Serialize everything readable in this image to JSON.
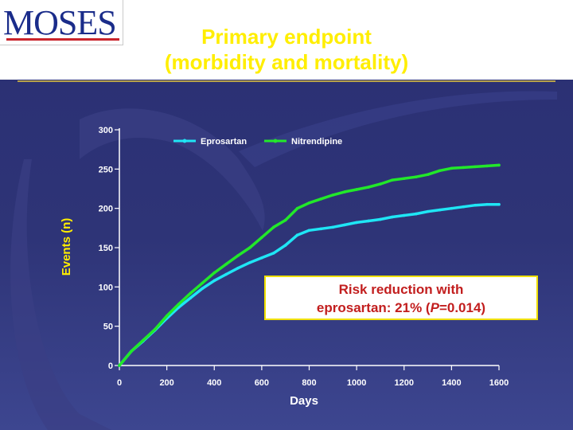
{
  "logo": {
    "text": "MOSES"
  },
  "slide": {
    "title_line1": "Primary endpoint",
    "title_line2": "(morbidity and mortality)"
  },
  "callout": {
    "line1": "Risk reduction with",
    "line2_prefix": "eprosartan: 21% (",
    "line2_italic": "P",
    "line2_suffix": "=0.014)"
  },
  "colors": {
    "title": "#ffee00",
    "eprosartan": "#1fe6f5",
    "nitrendipine": "#22e82a",
    "callout_text": "#c21e1e",
    "callout_border": "#f0e000",
    "background": "#2e3477"
  },
  "chart_data": {
    "type": "line",
    "title": "",
    "xlabel": "Days",
    "ylabel": "Events (n)",
    "xlim": [
      0,
      1600
    ],
    "ylim": [
      0,
      300
    ],
    "xticks": [
      0,
      200,
      400,
      600,
      800,
      1000,
      1200,
      1400,
      1600
    ],
    "yticks": [
      0,
      50,
      100,
      150,
      200,
      250,
      300
    ],
    "grid": false,
    "legend": "top-center",
    "series": [
      {
        "name": "Eprosartan",
        "color": "#1fe6f5",
        "x": [
          0,
          50,
          100,
          150,
          200,
          250,
          300,
          350,
          400,
          450,
          500,
          550,
          600,
          650,
          700,
          750,
          800,
          850,
          900,
          950,
          1000,
          1050,
          1100,
          1150,
          1200,
          1250,
          1300,
          1350,
          1400,
          1450,
          1500,
          1550,
          1600
        ],
        "y": [
          0,
          18,
          31,
          45,
          60,
          74,
          86,
          98,
          108,
          116,
          124,
          131,
          137,
          143,
          153,
          166,
          172,
          174,
          176,
          179,
          182,
          184,
          186,
          189,
          191,
          193,
          196,
          198,
          200,
          202,
          204,
          205,
          205
        ]
      },
      {
        "name": "Nitrendipine",
        "color": "#22e82a",
        "x": [
          0,
          50,
          100,
          150,
          200,
          250,
          300,
          350,
          400,
          450,
          500,
          550,
          600,
          650,
          700,
          750,
          800,
          850,
          900,
          950,
          1000,
          1050,
          1100,
          1150,
          1200,
          1250,
          1300,
          1350,
          1400,
          1450,
          1500,
          1550,
          1600
        ],
        "y": [
          0,
          18,
          32,
          46,
          63,
          78,
          92,
          105,
          118,
          129,
          140,
          150,
          163,
          176,
          185,
          200,
          207,
          212,
          217,
          221,
          224,
          227,
          231,
          236,
          238,
          240,
          243,
          248,
          251,
          252,
          253,
          254,
          255
        ]
      }
    ]
  }
}
